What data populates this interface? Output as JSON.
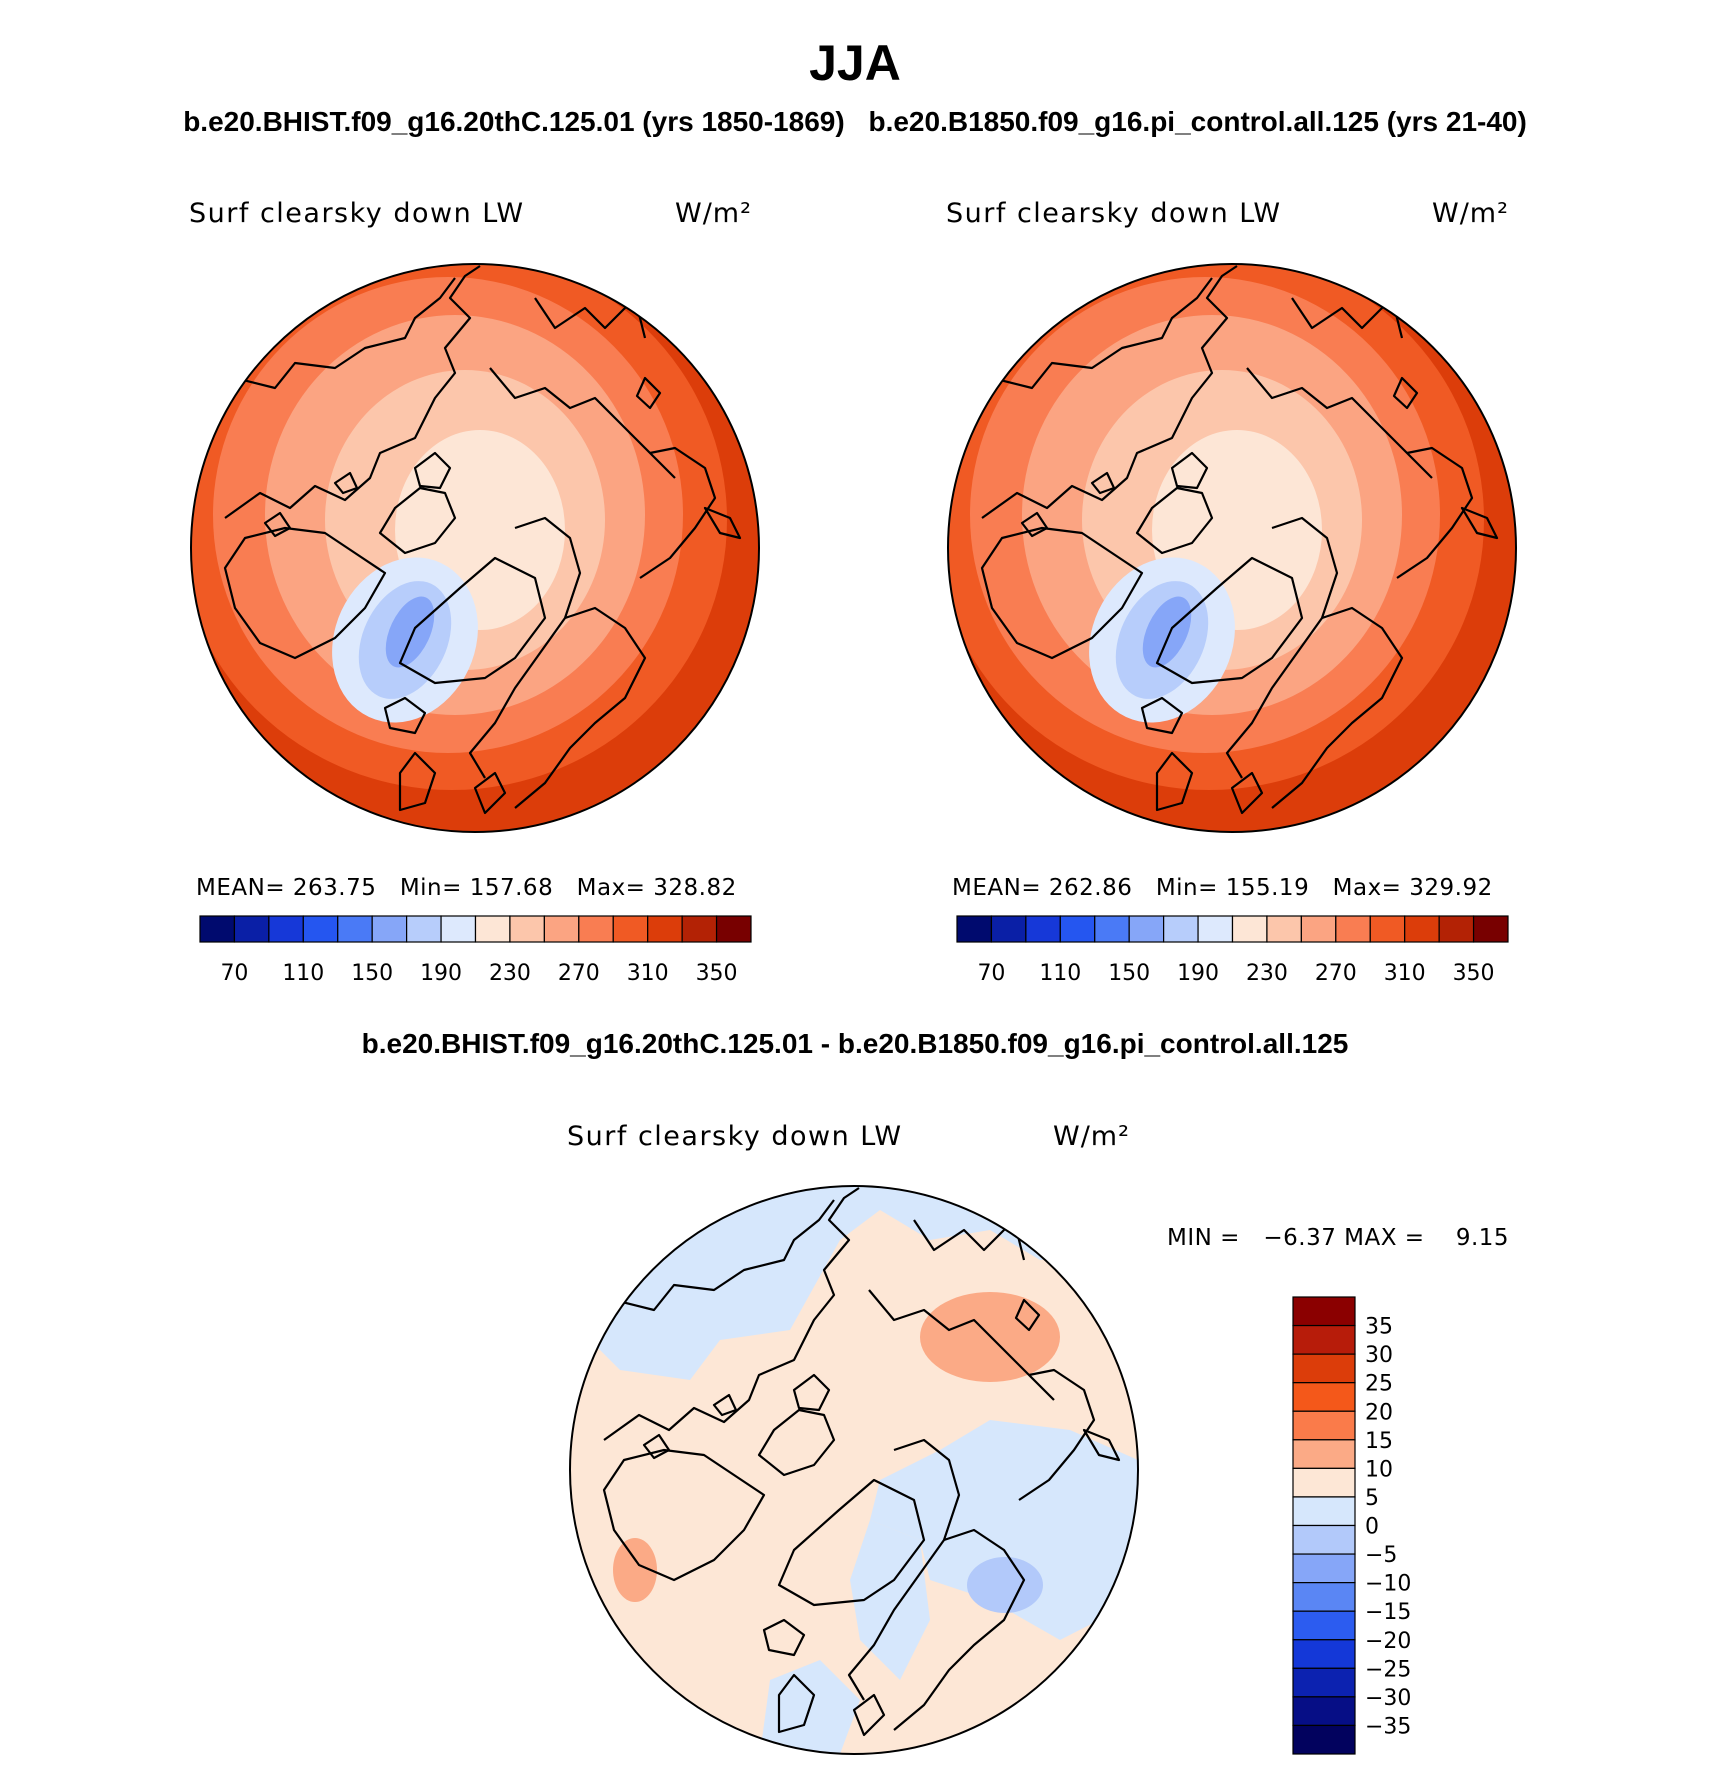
{
  "title": "JJA",
  "cases": [
    "b.e20.BHIST.f09_g16.20thC.125.01 (yrs 1850-1869)",
    "b.e20.B1850.f09_g16.pi_control.all.125 (yrs 21-40)"
  ],
  "diff_title": "b.e20.BHIST.f09_g16.20thC.125.01 - b.e20.B1850.f09_g16.pi_control.all.125",
  "panels": [
    {
      "variable": "Surf clearsky down LW",
      "units": "W/m²",
      "mean": "263.75",
      "min": "157.68",
      "max": "328.82"
    },
    {
      "variable": "Surf clearsky down LW",
      "units": "W/m²",
      "mean": "262.86",
      "min": "155.19",
      "max": "329.92"
    }
  ],
  "diff_panel": {
    "variable": "Surf clearsky down LW",
    "units": "W/m²",
    "min": "−6.37",
    "max": "9.15"
  },
  "colorbar_abs": {
    "levels": [
      "70",
      "110",
      "150",
      "190",
      "230",
      "270",
      "310",
      "350"
    ],
    "colors": [
      "#000a6e",
      "#0a1fa6",
      "#1638d8",
      "#2556f0",
      "#4a7af6",
      "#86a6f8",
      "#b7cdfb",
      "#dde9fd",
      "#fde6d6",
      "#fcc6ab",
      "#fba482",
      "#f97d52",
      "#f05a24",
      "#dc3d0a",
      "#b32205",
      "#780000"
    ]
  },
  "colorbar_diff": {
    "labels": [
      "35",
      "30",
      "25",
      "20",
      "15",
      "10",
      "5",
      "0",
      "−5",
      "−10",
      "−15",
      "−20",
      "−25",
      "−30",
      "−35"
    ],
    "colors": [
      "#8b0000",
      "#b71c0a",
      "#dc3d0a",
      "#f4581a",
      "#fa7b4a",
      "#fbaa86",
      "#fde7d6",
      "#d6e7fc",
      "#b2c9fa",
      "#86a6f8",
      "#5a86f4",
      "#2c5cf0",
      "#1438d8",
      "#0c22b0",
      "#060e86",
      "#02025e"
    ]
  }
}
